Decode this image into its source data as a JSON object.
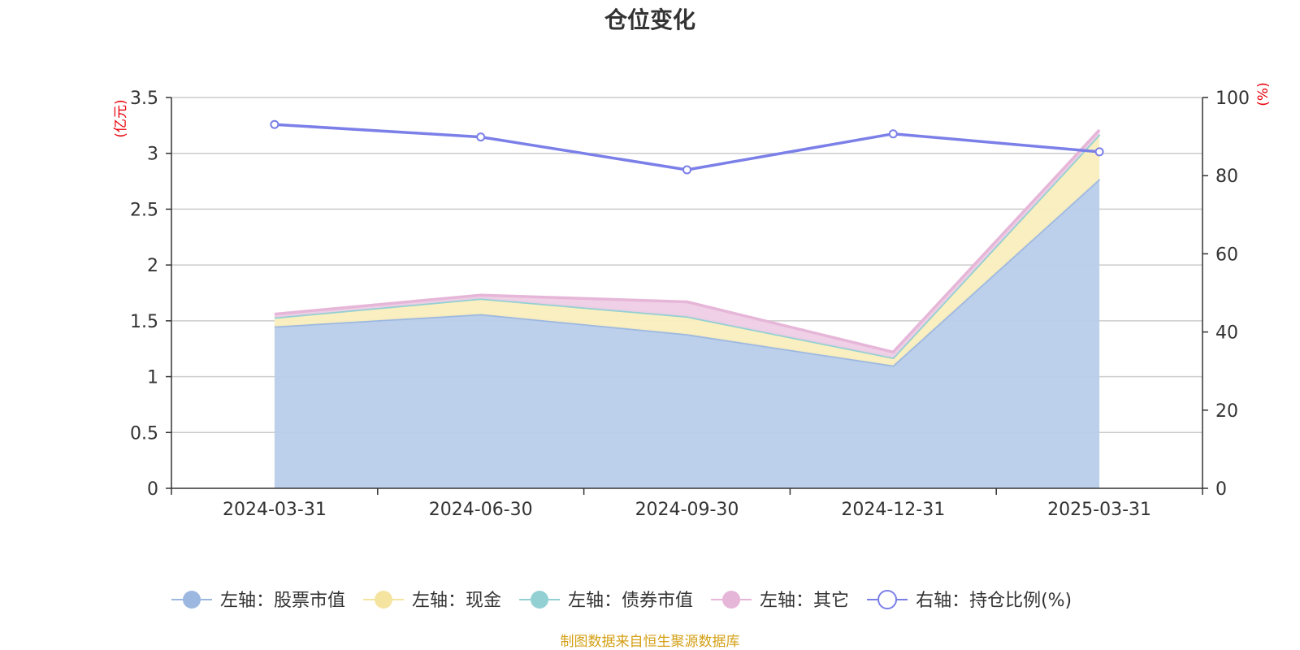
{
  "chart_data": {
    "type": "area",
    "title": "仓位变化",
    "categories": [
      "2024-03-31",
      "2024-06-30",
      "2024-09-30",
      "2024-12-31",
      "2025-03-31"
    ],
    "left_axis": {
      "unit": "(亿元)",
      "ylim": [
        0,
        3.5
      ],
      "ticks": [
        "0",
        "0.5",
        "1",
        "1.5",
        "2",
        "2.5",
        "3",
        "3.5"
      ]
    },
    "right_axis": {
      "unit": "(%)",
      "ylim": [
        0,
        100
      ],
      "ticks": [
        "0",
        "20",
        "40",
        "60",
        "80",
        "100"
      ]
    },
    "series": [
      {
        "name": "左轴：股票市值",
        "axis": "left",
        "type": "area",
        "stacked": true,
        "color": "#9db8e0",
        "fill": "#b8cdea",
        "values": [
          1.45,
          1.56,
          1.38,
          1.1,
          2.77
        ]
      },
      {
        "name": "左轴：现金",
        "axis": "left",
        "type": "area",
        "stacked": true,
        "color": "#f5e4a0",
        "fill": "#faeebe",
        "values": [
          0.08,
          0.14,
          0.16,
          0.07,
          0.4
        ]
      },
      {
        "name": "左轴：债券市值",
        "axis": "left",
        "type": "area",
        "stacked": true,
        "color": "#93d0d4",
        "fill": "#bfe5e6",
        "values": [
          0,
          0,
          0,
          0,
          0
        ]
      },
      {
        "name": "左轴：其它",
        "axis": "left",
        "type": "area",
        "stacked": true,
        "color": "#e6b6d8",
        "fill": "#eecde5",
        "values": [
          0.03,
          0.03,
          0.13,
          0.05,
          0.04
        ]
      },
      {
        "name": "右轴：持仓比例(%)",
        "axis": "right",
        "type": "line",
        "color": "#7b7fe8",
        "values": [
          93.1,
          89.9,
          81.5,
          90.7,
          86.1
        ]
      }
    ],
    "grid": true,
    "legend_position": "bottom",
    "source_note": "制图数据来自恒生聚源数据库"
  }
}
